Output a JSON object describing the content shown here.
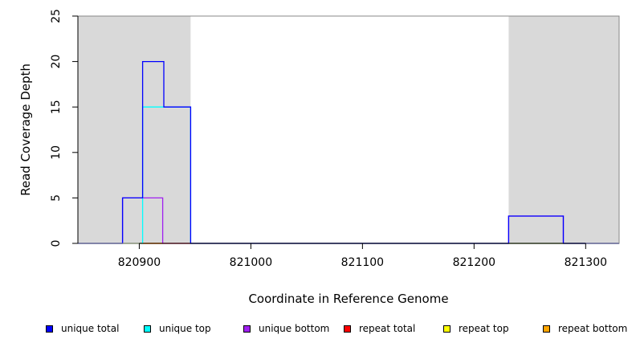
{
  "chart_data": {
    "type": "line",
    "title": "",
    "xlabel": "Coordinate in Reference Genome",
    "ylabel": "Read Coverage Depth",
    "xlim": [
      820845,
      821330
    ],
    "ylim": [
      0,
      25
    ],
    "x_ticks": [
      820900,
      821000,
      821100,
      821200,
      821300
    ],
    "y_ticks": [
      0,
      5,
      10,
      15,
      20,
      25
    ],
    "grid": false,
    "legend_position": "bottom",
    "shaded_regions": [
      {
        "x": [
          820845,
          820946
        ],
        "color": "#d9d9d9"
      },
      {
        "x": [
          821231,
          821330
        ],
        "color": "#d9d9d9"
      }
    ],
    "series": [
      {
        "name": "unique total",
        "color": "#0000ff",
        "x": [
          820845,
          820885,
          820885,
          820903,
          820903,
          820922,
          820922,
          820946,
          820946,
          821231,
          821231,
          821280,
          821280,
          821330
        ],
        "y": [
          0,
          0,
          5,
          5,
          20,
          20,
          15,
          15,
          0,
          0,
          3,
          3,
          0,
          0
        ]
      },
      {
        "name": "unique top",
        "color": "#00ffff",
        "x": [
          820845,
          820903,
          820903,
          820946,
          820946,
          821330
        ],
        "y": [
          0,
          0,
          15,
          15,
          0,
          0
        ]
      },
      {
        "name": "unique bottom",
        "color": "#a020f0",
        "x": [
          820845,
          820885,
          820885,
          820921,
          820921,
          821231,
          821231,
          821280,
          821280,
          821330
        ],
        "y": [
          0,
          0,
          5,
          5,
          0,
          0,
          3,
          3,
          0,
          0
        ]
      },
      {
        "name": "repeat total",
        "color": "#ff0000",
        "x": [
          820845,
          821330
        ],
        "y": [
          0,
          0
        ]
      },
      {
        "name": "repeat top",
        "color": "#ffff00",
        "x": [
          820845,
          821330
        ],
        "y": [
          0,
          0
        ]
      },
      {
        "name": "repeat bottom",
        "color": "#ffa500",
        "x": [
          820903,
          820921
        ],
        "y": [
          0,
          0
        ]
      }
    ]
  }
}
